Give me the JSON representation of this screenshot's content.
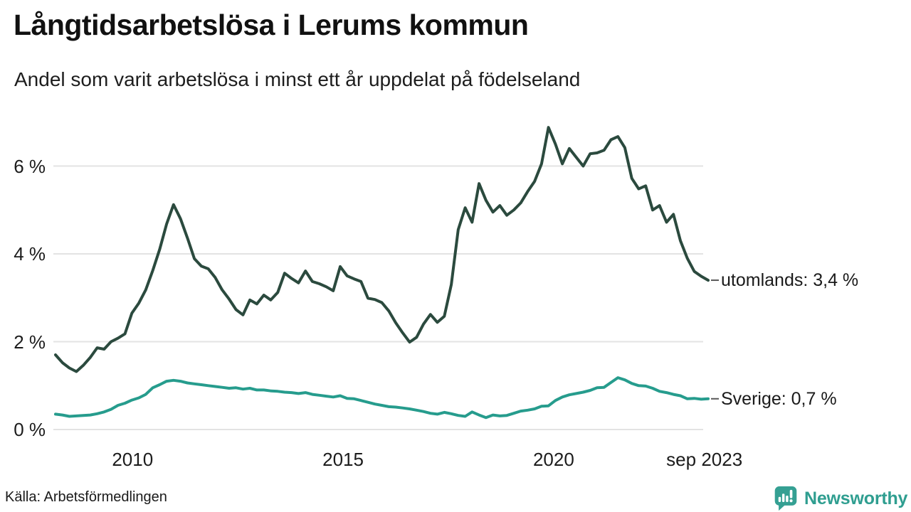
{
  "chart_data": {
    "type": "line",
    "title": "Långtidsarbetslösa i Lerums kommun",
    "subtitle": "Andel som varit arbetslösa i minst ett år uppdelat på födelseland",
    "source": "Källa: Arbetsförmedlingen",
    "unit": "%",
    "x_domain": [
      2008.17,
      2023.67
    ],
    "ylim": [
      0,
      7.2
    ],
    "grid": true,
    "legend_position": "end-of-line-labels",
    "y_ticks": [
      {
        "value": 0,
        "label": "0 %"
      },
      {
        "value": 2,
        "label": "2 %"
      },
      {
        "value": 4,
        "label": "4 %"
      },
      {
        "value": 6,
        "label": "6 %"
      }
    ],
    "x_ticks": [
      {
        "t": 2010,
        "label": "2010"
      },
      {
        "t": 2015,
        "label": "2015"
      },
      {
        "t": 2020,
        "label": "2020"
      },
      {
        "t": 2023.58,
        "label": "sep 2023"
      }
    ],
    "series": [
      {
        "name": "utomlands",
        "end_label": "utomlands: 3,4 %",
        "last_value": 3.4,
        "color": "#2b4a3e",
        "values": [
          1.7,
          1.52,
          1.4,
          1.32,
          1.46,
          1.64,
          1.86,
          1.83,
          2.0,
          2.08,
          2.18,
          2.65,
          2.88,
          3.18,
          3.62,
          4.1,
          4.68,
          5.12,
          4.8,
          4.36,
          3.89,
          3.72,
          3.66,
          3.46,
          3.18,
          2.97,
          2.73,
          2.61,
          2.95,
          2.86,
          3.06,
          2.95,
          3.12,
          3.56,
          3.44,
          3.34,
          3.61,
          3.37,
          3.32,
          3.25,
          3.16,
          3.71,
          3.5,
          3.43,
          3.37,
          2.99,
          2.96,
          2.89,
          2.7,
          2.43,
          2.2,
          1.99,
          2.1,
          2.4,
          2.62,
          2.44,
          2.58,
          3.3,
          4.55,
          5.05,
          4.72,
          5.6,
          5.22,
          4.95,
          5.1,
          4.88,
          5.0,
          5.16,
          5.42,
          5.65,
          6.05,
          6.88,
          6.5,
          6.05,
          6.4,
          6.2,
          6.0,
          6.28,
          6.3,
          6.36,
          6.6,
          6.67,
          6.42,
          5.72,
          5.48,
          5.55,
          5.0,
          5.1,
          4.72,
          4.9,
          4.3,
          3.9,
          3.6,
          3.49,
          3.4
        ]
      },
      {
        "name": "Sverige",
        "end_label": "Sverige: 0,7 %",
        "last_value": 0.7,
        "color": "#269c8d",
        "values": [
          0.35,
          0.33,
          0.3,
          0.31,
          0.32,
          0.33,
          0.36,
          0.4,
          0.46,
          0.55,
          0.6,
          0.67,
          0.72,
          0.8,
          0.95,
          1.02,
          1.1,
          1.12,
          1.1,
          1.06,
          1.04,
          1.02,
          1.0,
          0.98,
          0.96,
          0.94,
          0.95,
          0.92,
          0.94,
          0.9,
          0.9,
          0.88,
          0.87,
          0.85,
          0.84,
          0.82,
          0.84,
          0.8,
          0.78,
          0.76,
          0.74,
          0.77,
          0.71,
          0.7,
          0.66,
          0.62,
          0.58,
          0.55,
          0.52,
          0.51,
          0.49,
          0.47,
          0.44,
          0.41,
          0.37,
          0.35,
          0.39,
          0.36,
          0.32,
          0.3,
          0.4,
          0.33,
          0.27,
          0.33,
          0.31,
          0.32,
          0.37,
          0.42,
          0.44,
          0.47,
          0.53,
          0.54,
          0.66,
          0.74,
          0.79,
          0.82,
          0.85,
          0.89,
          0.95,
          0.96,
          1.07,
          1.18,
          1.13,
          1.05,
          1.0,
          0.99,
          0.94,
          0.87,
          0.84,
          0.8,
          0.77,
          0.7,
          0.71,
          0.69,
          0.7
        ]
      }
    ]
  },
  "footer": {
    "brand": "Newsworthy"
  },
  "colors": {
    "grid": "#e3e3e3",
    "leader_dash": "#595959",
    "brand_teal": "#2f9e90"
  }
}
